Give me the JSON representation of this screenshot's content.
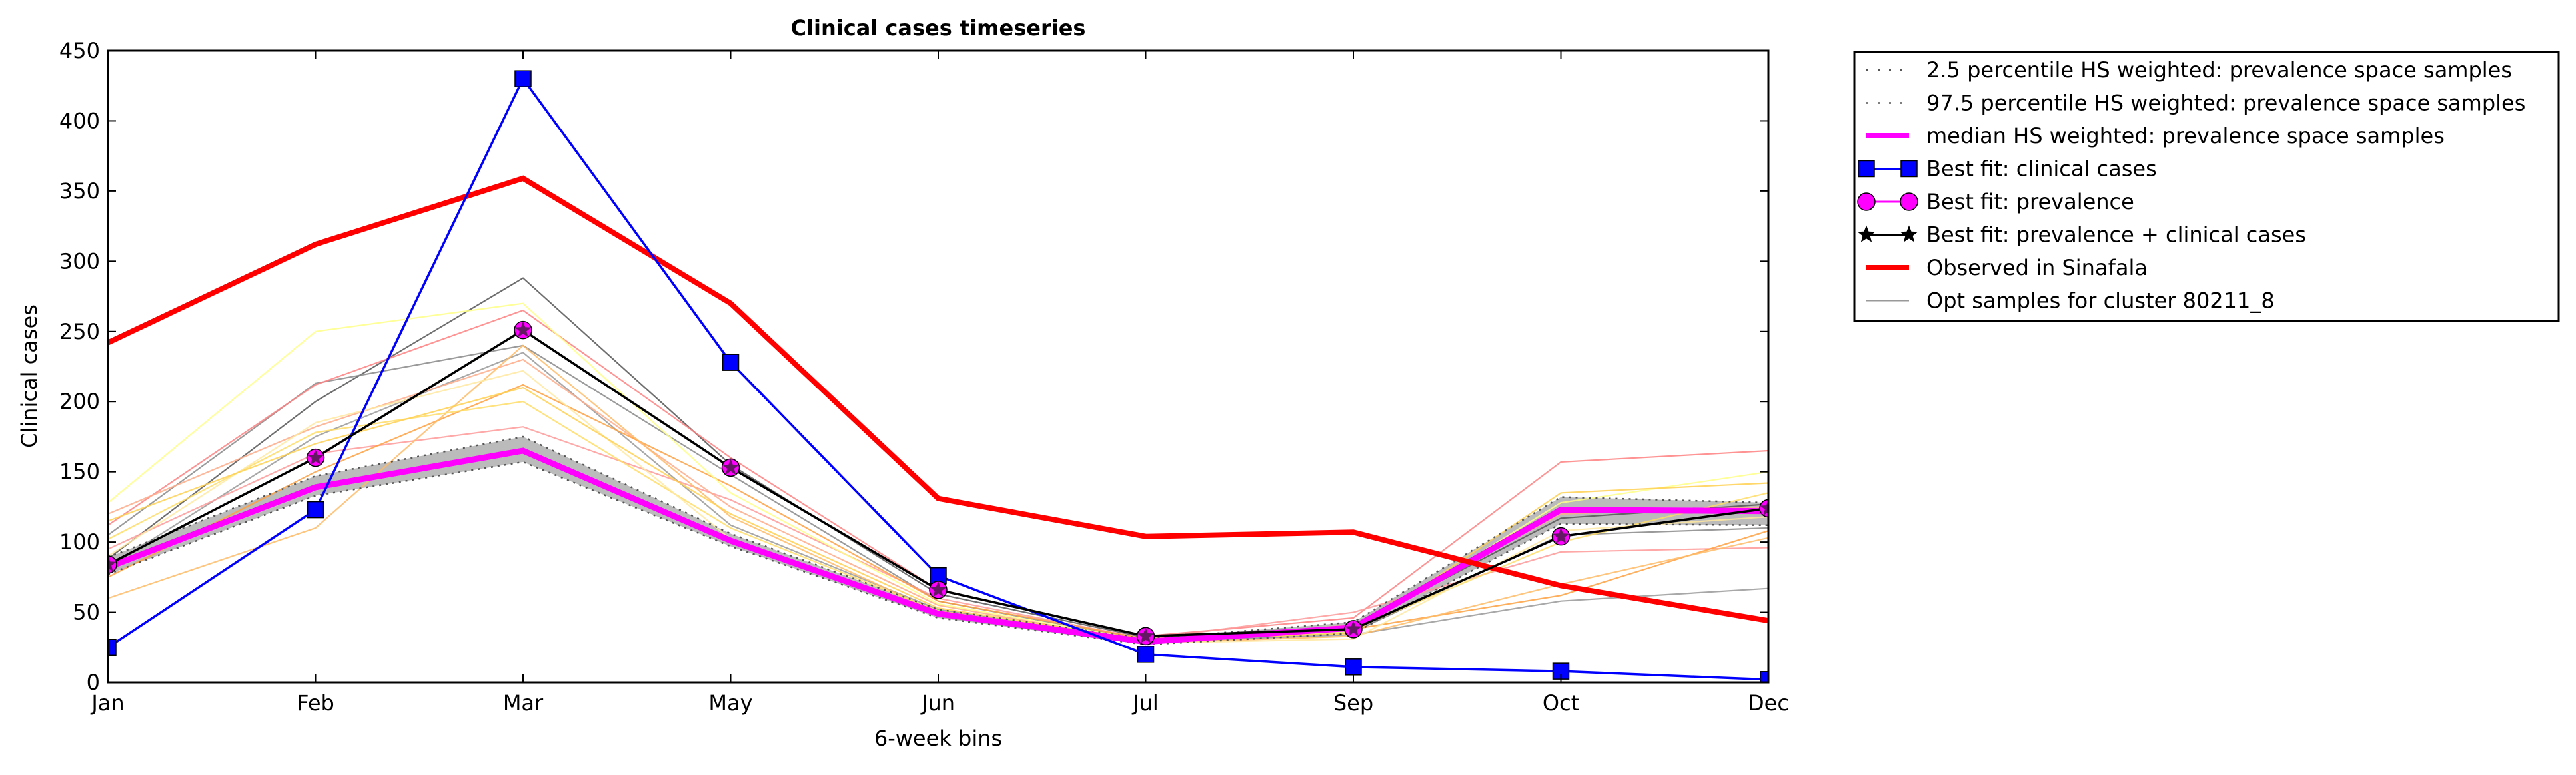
{
  "chart_data": {
    "type": "line",
    "title": "Clinical cases timeseries",
    "xlabel": "6-week bins",
    "ylabel": "Clinical cases",
    "categories": [
      "Jan",
      "Feb",
      "Mar",
      "May",
      "Jun",
      "Jul",
      "Sep",
      "Oct",
      "Dec"
    ],
    "ylim": [
      0,
      450
    ],
    "yticks": [
      0,
      50,
      100,
      150,
      200,
      250,
      300,
      350,
      400,
      450
    ],
    "grid": false,
    "legend_placement": "outside-top-right",
    "band": {
      "lower": [
        77,
        133,
        157,
        97,
        46,
        27,
        35,
        113,
        112
      ],
      "upper": [
        89,
        147,
        175,
        106,
        52,
        31,
        43,
        132,
        128
      ],
      "color": "#bbbbbb"
    },
    "samples": [
      {
        "values": [
          88,
          200,
          288,
          155,
          63,
          32,
          40,
          117,
          127
        ],
        "color": "#555555"
      },
      {
        "values": [
          105,
          213,
          240,
          148,
          58,
          30,
          36,
          105,
          110
        ],
        "color": "#888888"
      },
      {
        "values": [
          82,
          175,
          235,
          112,
          52,
          29,
          34,
          58,
          67
        ],
        "color": "#999999"
      },
      {
        "values": [
          112,
          212,
          265,
          160,
          66,
          33,
          46,
          157,
          165
        ],
        "color": "#ff7f7f"
      },
      {
        "values": [
          95,
          163,
          182,
          130,
          60,
          31,
          50,
          93,
          96
        ],
        "color": "#ff9999"
      },
      {
        "values": [
          120,
          182,
          230,
          125,
          55,
          29,
          41,
          120,
          125
        ],
        "color": "#ffaa88"
      },
      {
        "values": [
          75,
          150,
          212,
          140,
          58,
          31,
          38,
          62,
          108
        ],
        "color": "#ffa040"
      },
      {
        "values": [
          60,
          110,
          240,
          118,
          50,
          28,
          33,
          70,
          103
        ],
        "color": "#ffbb66"
      },
      {
        "values": [
          128,
          250,
          270,
          135,
          56,
          30,
          36,
          128,
          150
        ],
        "color": "#ffff88"
      },
      {
        "values": [
          102,
          178,
          200,
          110,
          51,
          30,
          38,
          100,
          135
        ],
        "color": "#ffdd66"
      },
      {
        "values": [
          90,
          185,
          222,
          102,
          49,
          28,
          31,
          108,
          118
        ],
        "color": "#ffe9a0"
      },
      {
        "values": [
          115,
          170,
          210,
          120,
          53,
          30,
          35,
          135,
          142
        ],
        "color": "#ffd050"
      }
    ],
    "series": [
      {
        "name": "2.5 percentile HS weighted: prevalence space samples",
        "values": [
          77,
          133,
          157,
          97,
          46,
          27,
          35,
          113,
          112
        ],
        "color": "#555555",
        "style": "dotted"
      },
      {
        "name": "97.5 percentile HS weighted: prevalence space samples",
        "values": [
          89,
          147,
          175,
          106,
          52,
          31,
          43,
          132,
          128
        ],
        "color": "#555555",
        "style": "dotted"
      },
      {
        "name": "median HS weighted: prevalence space samples",
        "values": [
          82,
          139,
          165,
          101,
          49,
          29,
          39,
          123,
          122
        ],
        "color": "#ff00ff",
        "style": "solid-thick"
      },
      {
        "name": "Best fit: clinical cases",
        "values": [
          25,
          123,
          430,
          228,
          76,
          20,
          11,
          8,
          2
        ],
        "color": "#0000ff",
        "marker": "square"
      },
      {
        "name": "Best fit: prevalence",
        "values": [
          84,
          160,
          251,
          153,
          66,
          33,
          38,
          104,
          124
        ],
        "color": "#ff00ff",
        "marker": "circle"
      },
      {
        "name": "Best fit: prevalence + clinical cases",
        "values": [
          84,
          160,
          251,
          153,
          66,
          33,
          38,
          104,
          124
        ],
        "color": "#000000",
        "marker": "star"
      },
      {
        "name": "Observed in Sinafala",
        "values": [
          242,
          312,
          359,
          270,
          131,
          104,
          107,
          69,
          44
        ],
        "color": "#ff0000",
        "style": "solid-thick"
      },
      {
        "name": "Opt samples for cluster 80211_8",
        "color": "#999999",
        "style": "thin"
      }
    ]
  }
}
